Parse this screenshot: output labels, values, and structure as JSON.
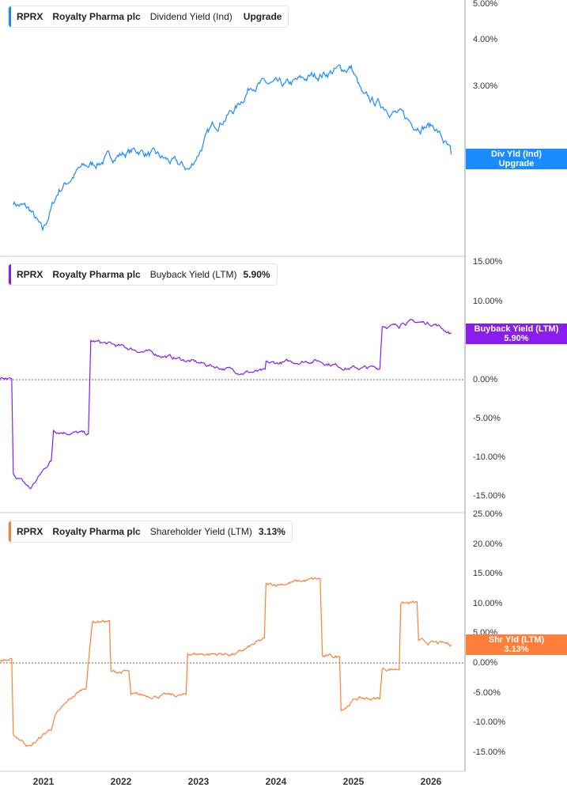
{
  "panels": [
    {
      "ticker": "RPRX",
      "company": "Royalty Pharma plc",
      "metric": "Dividend Yield (Ind)",
      "value": "Upgrade",
      "color": "#1a8cff",
      "tag": [
        "Div Yld (Ind)",
        "Upgrade"
      ],
      "ticks": [
        "5.00%",
        "4.00%",
        "3.00%"
      ]
    },
    {
      "ticker": "RPRX",
      "company": "Royalty Pharma plc",
      "metric": "Buyback Yield (LTM)",
      "value": "5.90%",
      "color": "#8a1cf0",
      "tag": [
        "Buyback Yield (LTM)",
        "5.90%"
      ],
      "ticks": [
        "15.00%",
        "10.00%",
        "0.00%",
        "-5.00%",
        "-10.00%",
        "-15.00%"
      ]
    },
    {
      "ticker": "RPRX",
      "company": "Royalty Pharma plc",
      "metric": "Shareholder Yield (LTM)",
      "value": "3.13%",
      "color": "#ff7f3a",
      "tag": [
        "Shr Yld (LTM)",
        "3.13%"
      ],
      "ticks": [
        "25.00%",
        "20.00%",
        "15.00%",
        "10.00%",
        "5.00%",
        "0.00%",
        "-5.00%",
        "-10.00%",
        "-15.00%"
      ]
    }
  ],
  "x_ticks": [
    "2021",
    "2022",
    "2023",
    "2024",
    "2025",
    "2026"
  ],
  "chart_data": [
    {
      "type": "line",
      "title": "RPRX Dividend Yield (Ind)",
      "yscale": "log",
      "ylim": [
        1.1,
        5
      ],
      "x_range": [
        2020.44,
        2026.26
      ],
      "points": [
        [
          2020.61,
          1.48
        ],
        [
          2020.83,
          1.4
        ],
        [
          2020.99,
          1.22
        ],
        [
          2021.2,
          1.59
        ],
        [
          2021.46,
          1.8
        ],
        [
          2021.97,
          1.98
        ],
        [
          2022.23,
          2.03
        ],
        [
          2022.89,
          1.8
        ],
        [
          2023.19,
          2.35
        ],
        [
          2023.5,
          2.65
        ],
        [
          2023.7,
          3.07
        ],
        [
          2024.11,
          2.99
        ],
        [
          2024.52,
          3.22
        ],
        [
          2024.97,
          3.38
        ],
        [
          2025.13,
          2.78
        ],
        [
          2025.44,
          2.65
        ],
        [
          2025.74,
          2.4
        ],
        [
          2026.05,
          2.35
        ],
        [
          2026.26,
          1.98
        ]
      ]
    },
    {
      "type": "line",
      "title": "RPRX Buyback Yield (LTM)",
      "ylim": [
        -16,
        16
      ],
      "x_range": [
        2020.44,
        2026.26
      ],
      "points": [
        [
          2020.44,
          0
        ],
        [
          2020.59,
          0
        ],
        [
          2020.61,
          -12
        ],
        [
          2020.83,
          -14
        ],
        [
          2021.08,
          -10.5
        ],
        [
          2021.1,
          -10.5
        ],
        [
          2021.13,
          -6.5
        ],
        [
          2021.58,
          -7
        ],
        [
          2021.61,
          5
        ],
        [
          2021.87,
          4.5
        ],
        [
          2023.55,
          1
        ],
        [
          2023.86,
          1
        ],
        [
          2023.87,
          2
        ],
        [
          2024.52,
          2.5
        ],
        [
          2024.93,
          1.5
        ],
        [
          2025.34,
          1.5
        ],
        [
          2025.37,
          7
        ],
        [
          2025.59,
          6.8
        ],
        [
          2025.61,
          7.5
        ],
        [
          2026.05,
          7.2
        ],
        [
          2026.26,
          5.9
        ]
      ]
    },
    {
      "type": "line",
      "title": "RPRX Shareholder Yield (LTM)",
      "ylim": [
        -19,
        25
      ],
      "x_range": [
        2020.44,
        2026.26
      ],
      "points": [
        [
          2020.44,
          0.5
        ],
        [
          2020.59,
          0.5
        ],
        [
          2020.61,
          -12
        ],
        [
          2020.83,
          -14
        ],
        [
          2021.1,
          -11
        ],
        [
          2021.15,
          -9
        ],
        [
          2021.35,
          -6
        ],
        [
          2021.55,
          -4
        ],
        [
          2021.63,
          7
        ],
        [
          2021.85,
          7
        ],
        [
          2021.87,
          -1.5
        ],
        [
          2022.1,
          -1.5
        ],
        [
          2022.13,
          -5.5
        ],
        [
          2022.84,
          -5.5
        ],
        [
          2022.86,
          1.5
        ],
        [
          2023.5,
          1.5
        ],
        [
          2023.85,
          4
        ],
        [
          2023.87,
          13
        ],
        [
          2024.52,
          14
        ],
        [
          2024.57,
          14
        ],
        [
          2024.6,
          1
        ],
        [
          2024.82,
          1
        ],
        [
          2024.84,
          -8
        ],
        [
          2025.03,
          -6
        ],
        [
          2025.34,
          -6
        ],
        [
          2025.37,
          -1
        ],
        [
          2025.59,
          -1
        ],
        [
          2025.61,
          10
        ],
        [
          2025.82,
          10
        ],
        [
          2025.84,
          3.5
        ],
        [
          2026.26,
          3.1
        ]
      ]
    }
  ]
}
